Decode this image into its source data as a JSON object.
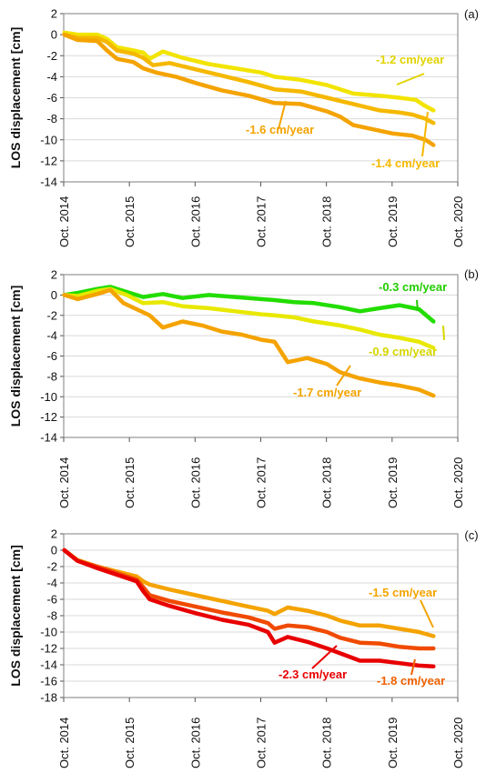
{
  "chart_data": [
    {
      "panel_label": "(a)",
      "type": "line",
      "ylabel": "LOS displacement [cm]",
      "ylim": [
        -14,
        2
      ],
      "yticks": [
        2,
        0,
        -2,
        -4,
        -6,
        -8,
        -10,
        -12,
        -14
      ],
      "xlim": [
        2014.79,
        2020.79
      ],
      "xtick_labels": [
        "Oct. 2014",
        "Oct. 2015",
        "Oct. 2016",
        "Oct. 2017",
        "Oct. 2018",
        "Oct. 2019",
        "Oct. 2020"
      ],
      "series": [
        {
          "name": "-1.2 cm/year",
          "color": "#f2e400",
          "x": [
            2014.8,
            2015.0,
            2015.3,
            2015.45,
            2015.6,
            2015.85,
            2016.0,
            2016.1,
            2016.3,
            2016.6,
            2017.0,
            2017.4,
            2017.8,
            2018.0,
            2018.4,
            2018.8,
            2019.2,
            2019.6,
            2019.9,
            2020.15,
            2020.3,
            2020.42
          ],
          "y": [
            0.2,
            0.0,
            0.0,
            -0.4,
            -1.2,
            -1.5,
            -1.7,
            -2.3,
            -1.6,
            -2.2,
            -2.8,
            -3.2,
            -3.6,
            -4.0,
            -4.3,
            -4.8,
            -5.6,
            -5.8,
            -6.0,
            -6.2,
            -6.8,
            -7.2
          ]
        },
        {
          "name": "-1.4 cm/year",
          "color": "#f5b800",
          "x": [
            2014.8,
            2015.0,
            2015.3,
            2015.45,
            2015.6,
            2015.85,
            2016.0,
            2016.15,
            2016.4,
            2016.8,
            2017.2,
            2017.6,
            2018.0,
            2018.4,
            2018.8,
            2019.2,
            2019.6,
            2019.9,
            2020.1,
            2020.3,
            2020.42
          ],
          "y": [
            0.0,
            -0.3,
            -0.3,
            -0.7,
            -1.5,
            -1.8,
            -2.2,
            -2.9,
            -2.7,
            -3.3,
            -3.9,
            -4.5,
            -5.2,
            -5.4,
            -6.0,
            -6.6,
            -7.2,
            -7.4,
            -7.6,
            -8.0,
            -8.4
          ]
        },
        {
          "name": "-1.6 cm/year",
          "color": "#f4a300",
          "x": [
            2014.8,
            2015.0,
            2015.3,
            2015.45,
            2015.6,
            2015.85,
            2016.0,
            2016.2,
            2016.5,
            2016.8,
            2017.2,
            2017.6,
            2018.0,
            2018.4,
            2018.8,
            2019.0,
            2019.2,
            2019.5,
            2019.8,
            2020.1,
            2020.3,
            2020.42
          ],
          "y": [
            0.0,
            -0.5,
            -0.6,
            -1.5,
            -2.3,
            -2.6,
            -3.2,
            -3.6,
            -4.0,
            -4.6,
            -5.3,
            -5.8,
            -6.5,
            -6.6,
            -7.3,
            -7.8,
            -8.6,
            -9.0,
            -9.4,
            -9.6,
            -10.0,
            -10.5
          ]
        }
      ],
      "annotations": [
        {
          "text": "-1.2 cm/year",
          "color": "#e2d300"
        },
        {
          "text": "-1.6 cm/year",
          "color": "#f4a300"
        },
        {
          "text": "-1.4 cm/year",
          "color": "#f5b800"
        }
      ]
    },
    {
      "panel_label": "(b)",
      "type": "line",
      "ylabel": "LOS displacement [cm]",
      "ylim": [
        -14,
        2
      ],
      "yticks": [
        2,
        0,
        -2,
        -4,
        -6,
        -8,
        -10,
        -12,
        -14
      ],
      "xlim": [
        2014.79,
        2020.79
      ],
      "xtick_labels": [
        "Oct. 2014",
        "Oct. 2015",
        "Oct. 2016",
        "Oct. 2017",
        "Oct. 2018",
        "Oct. 2019",
        "Oct. 2020"
      ],
      "series": [
        {
          "name": "-0.3 cm/year",
          "color": "#22dd00",
          "x": [
            2014.8,
            2015.0,
            2015.3,
            2015.5,
            2015.75,
            2016.0,
            2016.3,
            2016.6,
            2017.0,
            2017.4,
            2017.8,
            2018.0,
            2018.3,
            2018.6,
            2019.0,
            2019.3,
            2019.6,
            2019.9,
            2020.2,
            2020.42
          ],
          "y": [
            0.0,
            0.2,
            0.6,
            0.8,
            0.3,
            -0.2,
            0.1,
            -0.3,
            0.0,
            -0.2,
            -0.4,
            -0.5,
            -0.7,
            -0.8,
            -1.2,
            -1.6,
            -1.3,
            -1.0,
            -1.4,
            -2.6
          ]
        },
        {
          "name": "-0.9 cm/year",
          "color": "#e8e800",
          "x": [
            2014.8,
            2015.0,
            2015.3,
            2015.5,
            2015.75,
            2016.0,
            2016.3,
            2016.6,
            2017.0,
            2017.4,
            2017.8,
            2018.0,
            2018.3,
            2018.6,
            2019.0,
            2019.3,
            2019.6,
            2019.9,
            2020.2,
            2020.42
          ],
          "y": [
            0.0,
            -0.1,
            0.4,
            0.6,
            0.0,
            -0.8,
            -0.7,
            -1.1,
            -1.3,
            -1.6,
            -1.9,
            -2.0,
            -2.2,
            -2.6,
            -3.0,
            -3.4,
            -3.9,
            -4.2,
            -4.6,
            -5.2
          ]
        },
        {
          "name": "-1.7 cm/year",
          "color": "#f4a300",
          "x": [
            2014.8,
            2015.0,
            2015.3,
            2015.5,
            2015.7,
            2015.9,
            2016.1,
            2016.3,
            2016.6,
            2016.9,
            2017.2,
            2017.5,
            2017.8,
            2018.0,
            2018.2,
            2018.5,
            2018.8,
            2019.0,
            2019.3,
            2019.6,
            2019.9,
            2020.2,
            2020.42
          ],
          "y": [
            0.0,
            -0.4,
            0.1,
            0.5,
            -0.8,
            -1.4,
            -2.0,
            -3.2,
            -2.6,
            -3.0,
            -3.6,
            -3.9,
            -4.4,
            -4.6,
            -6.6,
            -6.2,
            -6.8,
            -7.6,
            -8.2,
            -8.6,
            -8.9,
            -9.3,
            -9.9
          ]
        }
      ],
      "annotations": [
        {
          "text": "-0.3 cm/year",
          "color": "#22cc00"
        },
        {
          "text": "-0.9 cm/year",
          "color": "#d6d600"
        },
        {
          "text": "-1.7 cm/year",
          "color": "#f4a300"
        }
      ]
    },
    {
      "panel_label": "(c)",
      "type": "line",
      "ylabel": "LOS displacement [cm]",
      "ylim": [
        -18,
        2
      ],
      "yticks": [
        2,
        0,
        -2,
        -4,
        -6,
        -8,
        -10,
        -12,
        -14,
        -16,
        -18
      ],
      "xlim": [
        2014.79,
        2020.79
      ],
      "xtick_labels": [
        "Oct. 2014",
        "Oct. 2015",
        "Oct. 2016",
        "Oct. 2017",
        "Oct. 2018",
        "Oct. 2019",
        "Oct. 2020"
      ],
      "series": [
        {
          "name": "-1.5 cm/year",
          "color": "#f4a300",
          "x": [
            2014.8,
            2015.0,
            2015.3,
            2015.6,
            2015.9,
            2016.0,
            2016.1,
            2016.4,
            2016.8,
            2017.2,
            2017.6,
            2017.9,
            2018.0,
            2018.2,
            2018.5,
            2018.8,
            2019.0,
            2019.3,
            2019.6,
            2019.9,
            2020.2,
            2020.42
          ],
          "y": [
            0.0,
            -1.2,
            -2.0,
            -2.6,
            -3.2,
            -3.8,
            -4.2,
            -4.8,
            -5.5,
            -6.2,
            -6.9,
            -7.4,
            -7.8,
            -7.0,
            -7.4,
            -8.0,
            -8.6,
            -9.2,
            -9.2,
            -9.6,
            -10.0,
            -10.5
          ]
        },
        {
          "name": "-1.8 cm/year",
          "color": "#f04a00",
          "x": [
            2014.8,
            2015.0,
            2015.3,
            2015.6,
            2015.9,
            2016.0,
            2016.1,
            2016.4,
            2016.8,
            2017.2,
            2017.6,
            2017.9,
            2018.0,
            2018.2,
            2018.5,
            2018.8,
            2019.0,
            2019.3,
            2019.6,
            2019.9,
            2020.2,
            2020.42
          ],
          "y": [
            0.0,
            -1.3,
            -2.0,
            -2.8,
            -3.6,
            -4.5,
            -5.5,
            -6.2,
            -6.9,
            -7.6,
            -8.2,
            -8.9,
            -9.6,
            -9.2,
            -9.4,
            -10.0,
            -10.7,
            -11.3,
            -11.4,
            -11.8,
            -12.0,
            -12.0
          ]
        },
        {
          "name": "-2.3 cm/year",
          "color": "#e80000",
          "x": [
            2014.8,
            2015.0,
            2015.3,
            2015.6,
            2015.9,
            2016.0,
            2016.1,
            2016.4,
            2016.8,
            2017.2,
            2017.6,
            2017.9,
            2018.0,
            2018.2,
            2018.5,
            2018.8,
            2019.0,
            2019.3,
            2019.6,
            2019.9,
            2020.2,
            2020.42
          ],
          "y": [
            0.0,
            -1.3,
            -2.2,
            -3.0,
            -3.8,
            -5.0,
            -6.0,
            -6.8,
            -7.7,
            -8.5,
            -9.1,
            -10.0,
            -11.3,
            -10.6,
            -11.2,
            -12.0,
            -12.6,
            -13.5,
            -13.5,
            -13.8,
            -14.1,
            -14.2
          ]
        }
      ],
      "annotations": [
        {
          "text": "-1.5 cm/year",
          "color": "#f4a300"
        },
        {
          "text": "-2.3 cm/year",
          "color": "#e80000"
        },
        {
          "text": "-1.8 cm/year",
          "color": "#f06000"
        }
      ]
    }
  ]
}
